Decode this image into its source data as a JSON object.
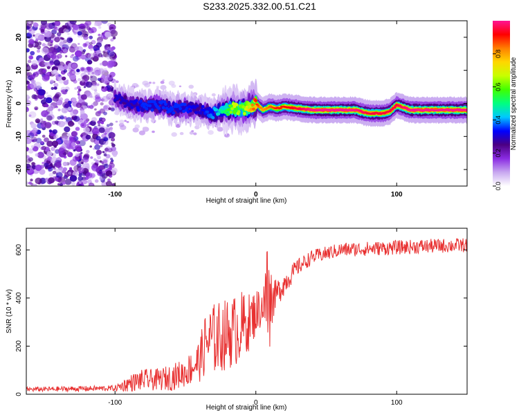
{
  "title": "S233.2025.332.00.51.C21",
  "chart_data": [
    {
      "type": "heatmap",
      "name": "spectrogram",
      "xlabel": "Height of straight line (km)",
      "ylabel": "Frequency (Hz)",
      "xlim": [
        -163,
        150
      ],
      "ylim": [
        -25,
        25
      ],
      "xticks": [
        -100,
        0,
        100
      ],
      "yticks": [
        -20,
        -10,
        0,
        10,
        20
      ],
      "colorbar": {
        "label": "Normalized spectral amplitude",
        "range": [
          0,
          1
        ],
        "ticks": [
          0.0,
          0.2,
          0.4,
          0.6,
          0.8
        ],
        "colormap": [
          "#ffffff",
          "#c8a8f0",
          "#8a2be2",
          "#4b0082",
          "#0000ff",
          "#00c8ff",
          "#00ff80",
          "#40ff00",
          "#c8ff00",
          "#ffd700",
          "#ff8000",
          "#ff0000",
          "#ff1493"
        ]
      },
      "ridge": {
        "x": [
          -100,
          -90,
          -80,
          -70,
          -60,
          -50,
          -40,
          -30,
          -20,
          -15,
          -10,
          -5,
          0,
          5,
          10,
          15,
          20,
          30,
          40,
          50,
          60,
          70,
          80,
          90,
          95,
          100,
          110,
          120,
          130,
          140,
          150
        ],
        "freq": [
          1.5,
          0,
          -1,
          -0.5,
          -1.5,
          -1.5,
          -2,
          -3,
          -2,
          -1.5,
          -2,
          -1,
          0,
          -2,
          -1,
          -1.5,
          -1,
          -1.5,
          -2,
          -2,
          -2,
          -2,
          -3,
          -3,
          -2.5,
          -0.5,
          -2,
          -2,
          -2,
          -2,
          -2
        ],
        "strength": [
          0.3,
          0.3,
          0.35,
          0.35,
          0.35,
          0.35,
          0.3,
          0.4,
          0.55,
          0.7,
          0.6,
          0.75,
          0.9,
          0.8,
          0.85,
          0.9,
          0.9,
          0.95,
          1.0,
          1.0,
          1.0,
          1.0,
          0.95,
          0.95,
          0.95,
          0.95,
          1.0,
          1.0,
          1.0,
          1.0,
          1.0
        ]
      },
      "noise_region": {
        "x": [
          -163,
          -100
        ],
        "freq": [
          -25,
          25
        ],
        "level": 0.25
      }
    },
    {
      "type": "line",
      "name": "snr",
      "xlabel": "Height of straight line (km)",
      "ylabel": "SNR (10 * v/v)",
      "xlim": [
        -163,
        150
      ],
      "ylim": [
        0,
        690
      ],
      "xticks": [
        -100,
        0,
        100
      ],
      "yticks": [
        0,
        200,
        400,
        600
      ],
      "color": "#e83030",
      "envelope": {
        "x": [
          -163,
          -100,
          -90,
          -80,
          -70,
          -60,
          -50,
          -40,
          -35,
          -30,
          -20,
          -10,
          -5,
          0,
          5,
          8,
          10,
          12,
          15,
          20,
          30,
          40,
          50,
          60,
          80,
          100,
          120,
          150
        ],
        "mean": [
          20,
          25,
          45,
          60,
          60,
          70,
          90,
          140,
          220,
          230,
          250,
          280,
          300,
          340,
          370,
          380,
          360,
          390,
          420,
          460,
          530,
          570,
          585,
          600,
          605,
          610,
          615,
          620
        ],
        "amplitude": [
          10,
          12,
          35,
          45,
          45,
          55,
          60,
          90,
          140,
          150,
          150,
          150,
          120,
          100,
          80,
          220,
          160,
          80,
          60,
          50,
          35,
          30,
          30,
          30,
          30,
          30,
          30,
          30
        ]
      }
    }
  ]
}
